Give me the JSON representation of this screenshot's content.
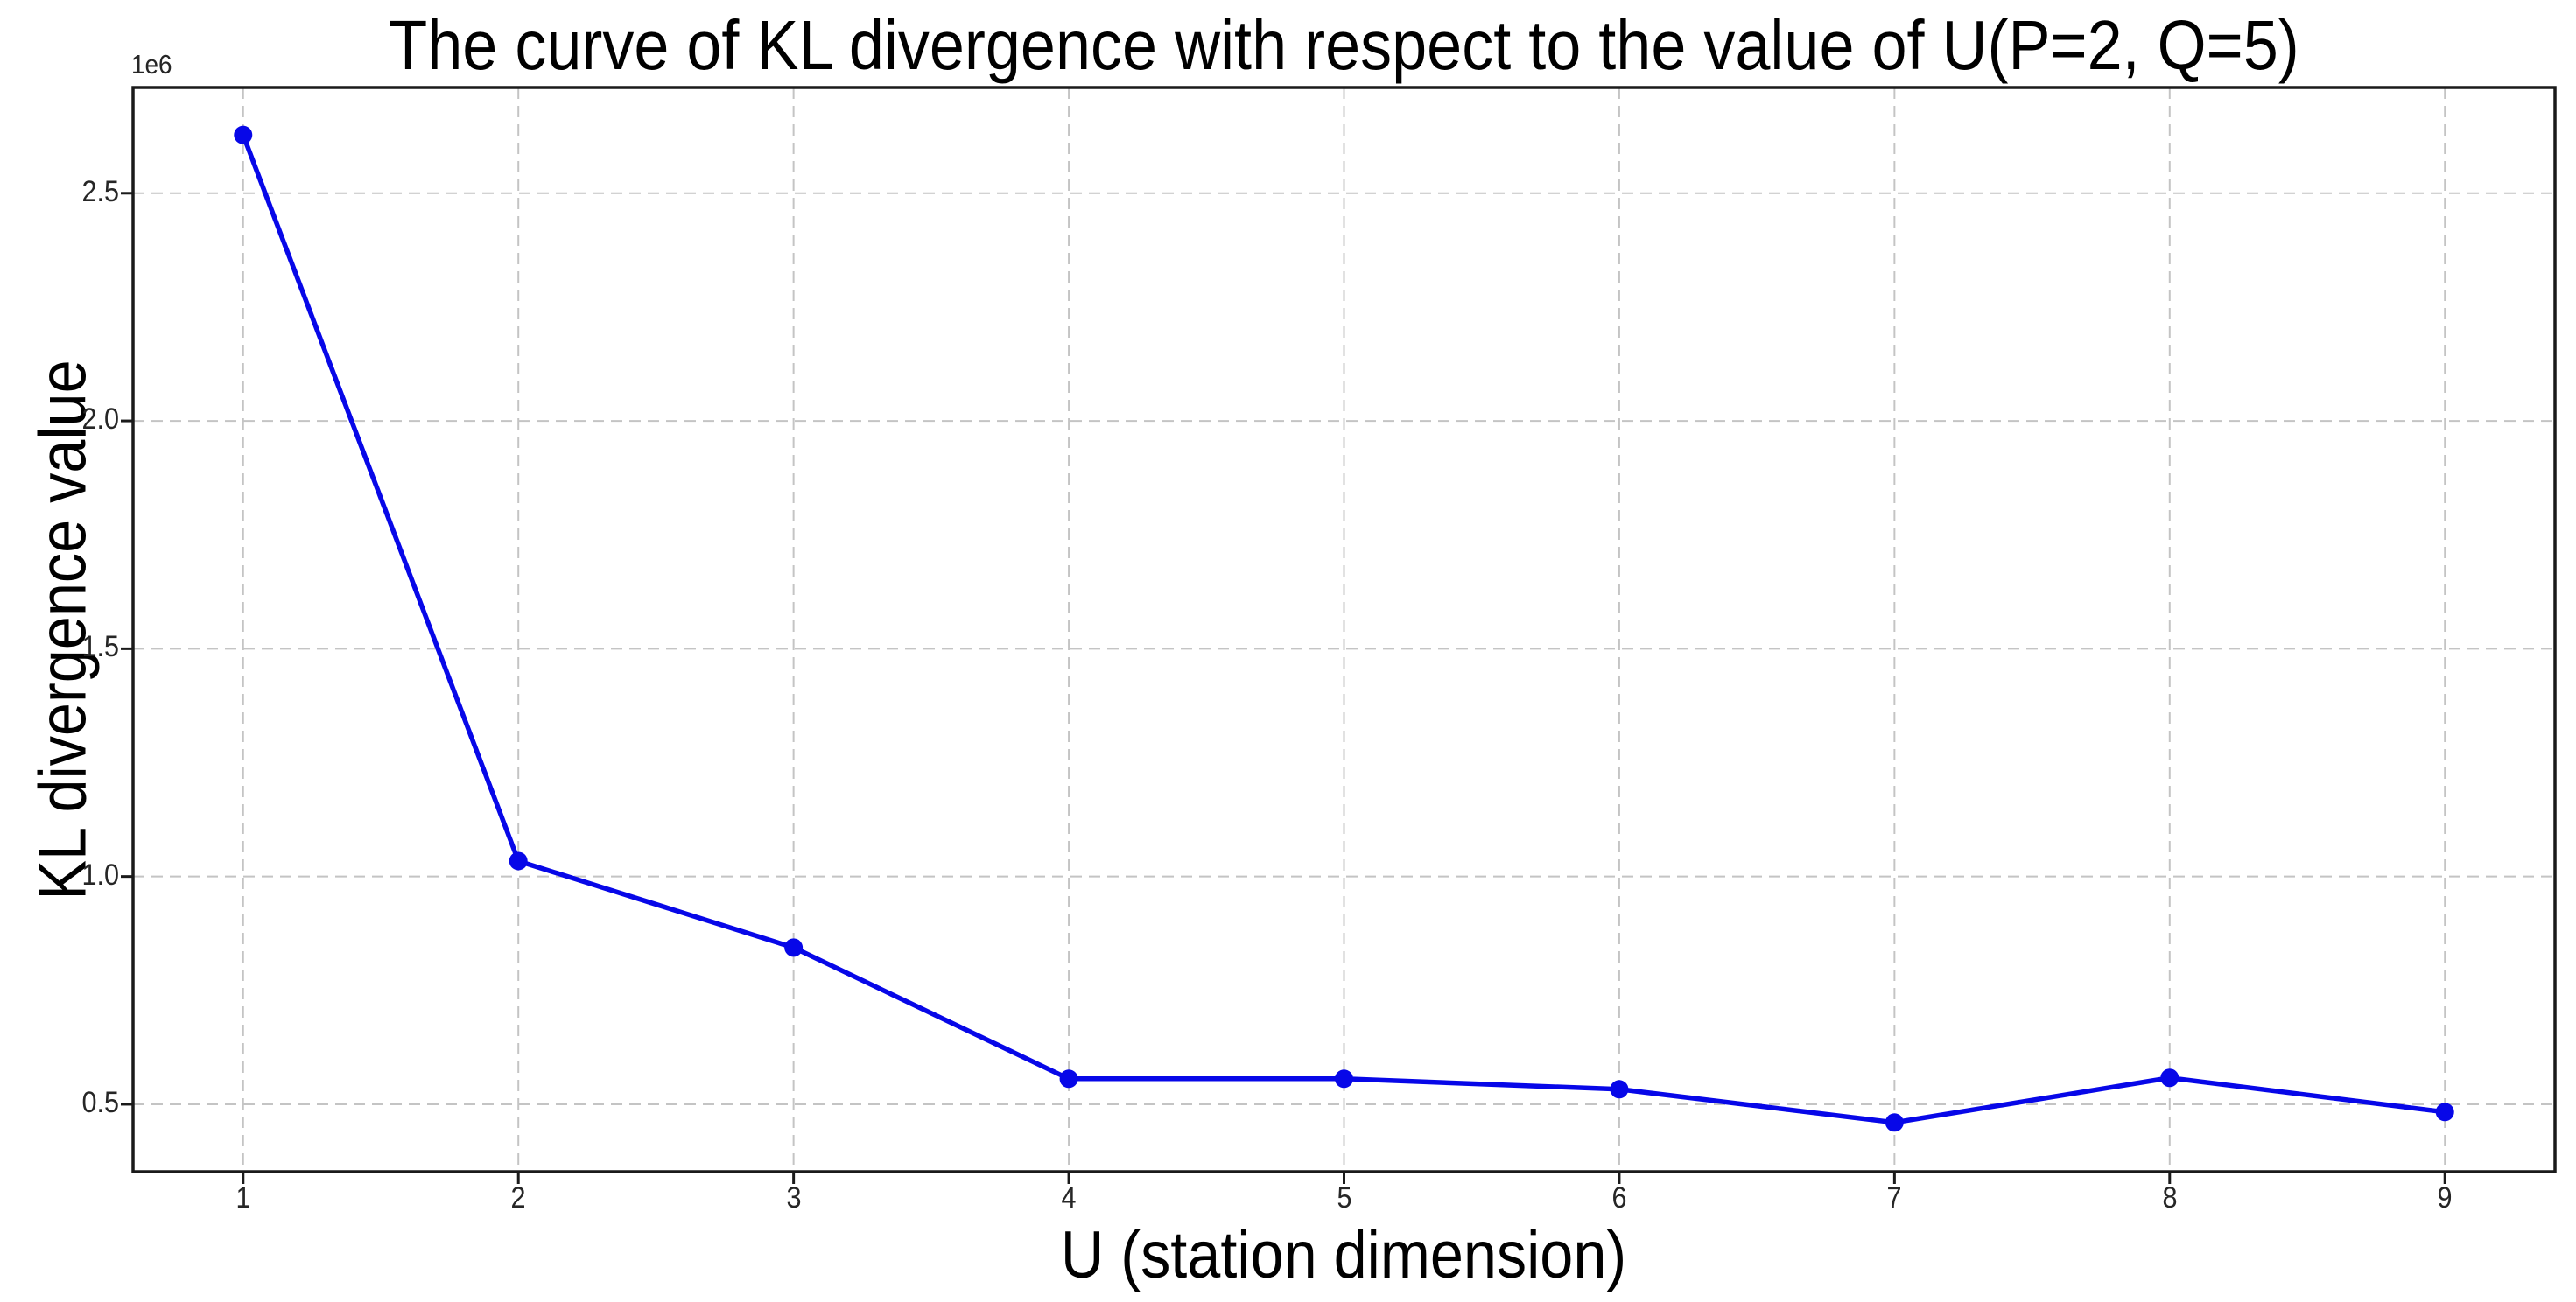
{
  "chart_data": {
    "type": "line",
    "title": "The curve of KL divergence with respect to the value of U(P=2, Q=5)",
    "xlabel": "U (station dimension)",
    "ylabel": "KL divergence value",
    "y_offset_label": "1e6",
    "x": [
      1,
      2,
      3,
      4,
      5,
      6,
      7,
      8,
      9
    ],
    "values": [
      2628000,
      1034000,
      844000,
      556000,
      556000,
      533000,
      460000,
      558000,
      483000
    ],
    "x_tick_labels": [
      "1",
      "2",
      "3",
      "4",
      "5",
      "6",
      "7",
      "8",
      "9"
    ],
    "y_tick_values": [
      500000,
      1000000,
      1500000,
      2000000,
      2500000
    ],
    "y_tick_labels": [
      "0.5",
      "1.0",
      "1.5",
      "2.0",
      "2.5"
    ],
    "xlim": [
      0.6,
      9.4
    ],
    "ylim": [
      352000,
      2732000
    ],
    "grid": true,
    "grid_style": "dashed",
    "legend": "none",
    "marker": "circle",
    "colors": {
      "line": "#0707e8",
      "marker": "#0707e8",
      "grid": "#c4c4c4",
      "spine": "#1a1a1a",
      "tick_text": "#262626",
      "background": "#ffffff"
    }
  }
}
